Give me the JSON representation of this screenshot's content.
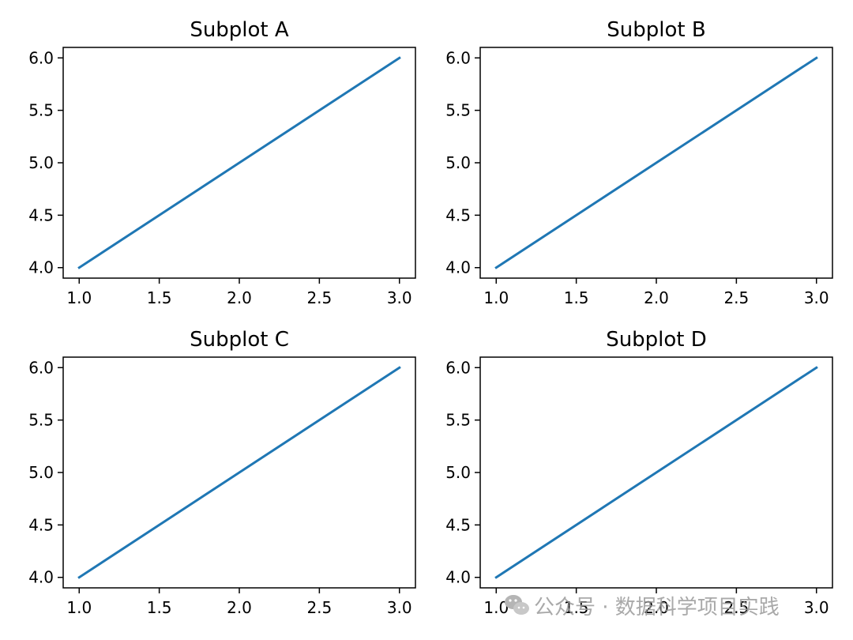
{
  "colors": {
    "line": "#1f77b4",
    "watermark": "#9a9a9a"
  },
  "chart_data": [
    {
      "type": "line",
      "title": "Subplot A",
      "x": [
        1.0,
        2.0,
        3.0
      ],
      "series": [
        {
          "values": [
            4.0,
            5.0,
            6.0
          ]
        }
      ],
      "xlim": [
        0.9,
        3.1
      ],
      "ylim": [
        3.9,
        6.1
      ],
      "xticks": [
        1.0,
        1.5,
        2.0,
        2.5,
        3.0
      ],
      "xtick_labels": [
        "1.0",
        "1.5",
        "2.0",
        "2.5",
        "3.0"
      ],
      "yticks": [
        4.0,
        4.5,
        5.0,
        5.5,
        6.0
      ],
      "ytick_labels": [
        "4.0",
        "4.5",
        "5.0",
        "5.5",
        "6.0"
      ],
      "grid": false
    },
    {
      "type": "line",
      "title": "Subplot B",
      "x": [
        1.0,
        2.0,
        3.0
      ],
      "series": [
        {
          "values": [
            4.0,
            5.0,
            6.0
          ]
        }
      ],
      "xlim": [
        0.9,
        3.1
      ],
      "ylim": [
        3.9,
        6.1
      ],
      "xticks": [
        1.0,
        1.5,
        2.0,
        2.5,
        3.0
      ],
      "xtick_labels": [
        "1.0",
        "1.5",
        "2.0",
        "2.5",
        "3.0"
      ],
      "yticks": [
        4.0,
        4.5,
        5.0,
        5.5,
        6.0
      ],
      "ytick_labels": [
        "4.0",
        "4.5",
        "5.0",
        "5.5",
        "6.0"
      ],
      "grid": false
    },
    {
      "type": "line",
      "title": "Subplot C",
      "x": [
        1.0,
        2.0,
        3.0
      ],
      "series": [
        {
          "values": [
            4.0,
            5.0,
            6.0
          ]
        }
      ],
      "xlim": [
        0.9,
        3.1
      ],
      "ylim": [
        3.9,
        6.1
      ],
      "xticks": [
        1.0,
        1.5,
        2.0,
        2.5,
        3.0
      ],
      "xtick_labels": [
        "1.0",
        "1.5",
        "2.0",
        "2.5",
        "3.0"
      ],
      "yticks": [
        4.0,
        4.5,
        5.0,
        5.5,
        6.0
      ],
      "ytick_labels": [
        "4.0",
        "4.5",
        "5.0",
        "5.5",
        "6.0"
      ],
      "grid": false
    },
    {
      "type": "line",
      "title": "Subplot D",
      "x": [
        1.0,
        2.0,
        3.0
      ],
      "series": [
        {
          "values": [
            4.0,
            5.0,
            6.0
          ]
        }
      ],
      "xlim": [
        0.9,
        3.1
      ],
      "ylim": [
        3.9,
        6.1
      ],
      "xticks": [
        1.0,
        1.5,
        2.0,
        2.5,
        3.0
      ],
      "xtick_labels": [
        "1.0",
        "1.5",
        "2.0",
        "2.5",
        "3.0"
      ],
      "yticks": [
        4.0,
        4.5,
        5.0,
        5.5,
        6.0
      ],
      "ytick_labels": [
        "4.0",
        "4.5",
        "5.0",
        "5.5",
        "6.0"
      ],
      "grid": false
    }
  ],
  "watermark": {
    "icon": "wechat-icon",
    "text": "公众号 · 数据科学项目实践"
  }
}
